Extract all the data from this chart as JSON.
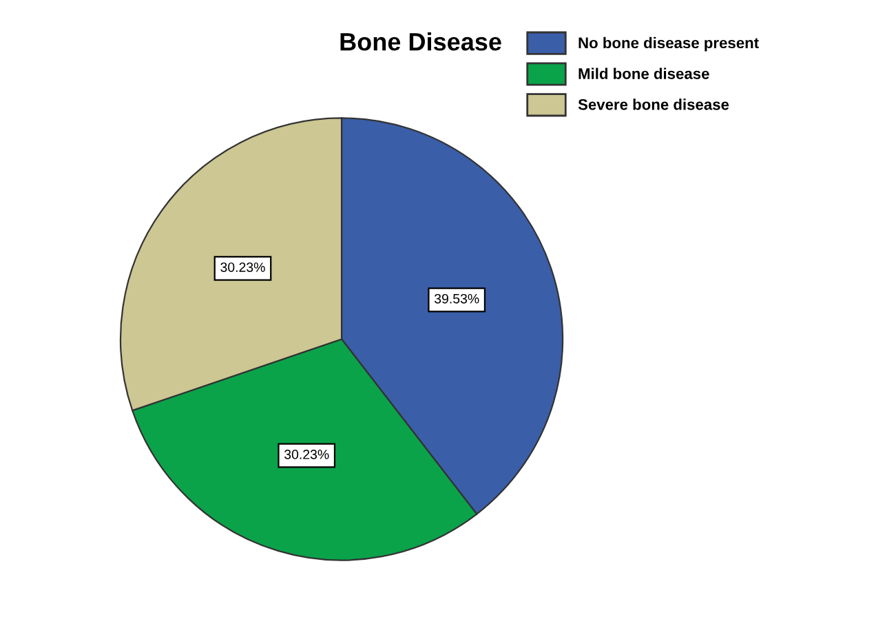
{
  "chart_data": {
    "type": "pie",
    "title": "Bone Disease",
    "categories": [
      "No bone disease present",
      "Mild bone disease",
      "Severe bone disease"
    ],
    "values": [
      39.53,
      30.23,
      30.23
    ],
    "colors": [
      "#3a5ea8",
      "#0aa34a",
      "#ccc793"
    ],
    "value_labels": [
      "39.53%",
      "30.23%",
      "30.23%"
    ],
    "legend": "top right"
  }
}
